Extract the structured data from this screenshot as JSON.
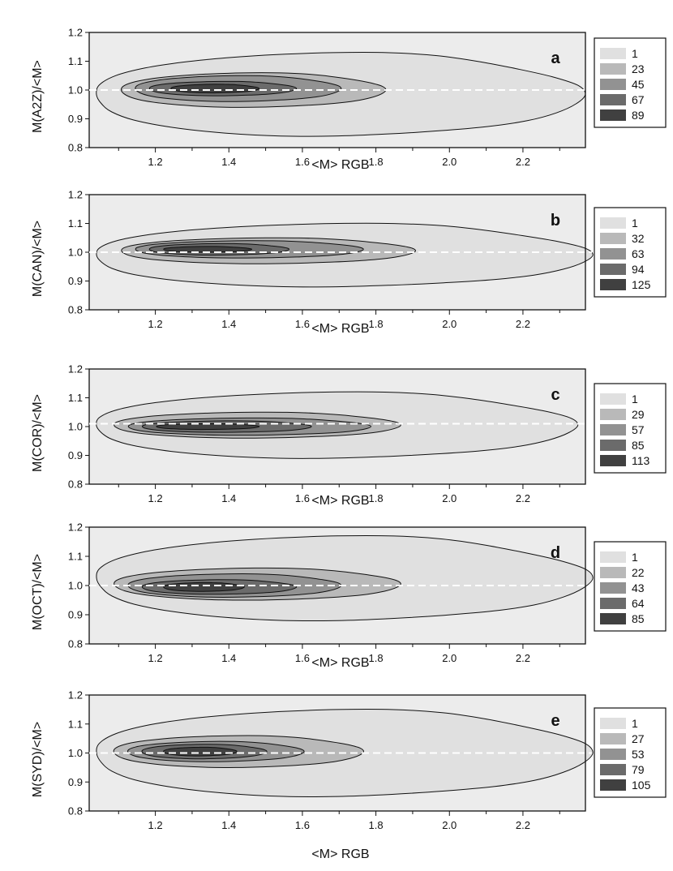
{
  "chart_data": [
    {
      "type": "heatmap",
      "panel": "a",
      "xlabel": "<M> RGB",
      "ylabel": "M(A2Z)/<M>",
      "xlim": [
        1.02,
        2.37
      ],
      "ylim": [
        0.8,
        1.2
      ],
      "xticks": [
        "1.2",
        "1.4",
        "1.6",
        "1.8",
        "2.0",
        "2.2"
      ],
      "yticks": [
        "0.8",
        "0.9",
        "1.0",
        "1.1",
        "1.2"
      ],
      "legend_levels": [
        "1",
        "23",
        "45",
        "67",
        "89"
      ],
      "reference_line": 1.0,
      "contours": [
        {
          "level": "1",
          "x_range": [
            1.02,
            2.35
          ],
          "y_range": [
            0.84,
            1.13
          ]
        },
        {
          "level": "23",
          "x_range": [
            1.1,
            1.82
          ],
          "y_range": [
            0.94,
            1.06
          ]
        },
        {
          "level": "45",
          "x_range": [
            1.14,
            1.7
          ],
          "y_range": [
            0.96,
            1.05
          ]
        },
        {
          "level": "67",
          "x_range": [
            1.18,
            1.58
          ],
          "y_range": [
            0.98,
            1.03
          ]
        },
        {
          "level": "89",
          "x_range": [
            1.24,
            1.48
          ],
          "y_range": [
            0.99,
            1.02
          ]
        }
      ]
    },
    {
      "type": "heatmap",
      "panel": "b",
      "xlabel": "<M> RGB",
      "ylabel": "M(CAN)/<M>",
      "xlim": [
        1.02,
        2.37
      ],
      "ylim": [
        0.8,
        1.2
      ],
      "xticks": [
        "1.2",
        "1.4",
        "1.6",
        "1.8",
        "2.0",
        "2.2"
      ],
      "yticks": [
        "0.8",
        "0.9",
        "1.0",
        "1.1",
        "1.2"
      ],
      "legend_levels": [
        "1",
        "32",
        "63",
        "94",
        "125"
      ],
      "reference_line": 1.0,
      "contours": [
        {
          "level": "1",
          "x_range": [
            1.02,
            2.37
          ],
          "y_range": [
            0.88,
            1.1
          ]
        },
        {
          "level": "32",
          "x_range": [
            1.1,
            1.9
          ],
          "y_range": [
            0.96,
            1.05
          ]
        },
        {
          "level": "63",
          "x_range": [
            1.14,
            1.76
          ],
          "y_range": [
            0.98,
            1.04
          ]
        },
        {
          "level": "94",
          "x_range": [
            1.18,
            1.56
          ],
          "y_range": [
            0.99,
            1.03
          ]
        },
        {
          "level": "125",
          "x_range": [
            1.22,
            1.46
          ],
          "y_range": [
            1.0,
            1.02
          ]
        }
      ]
    },
    {
      "type": "heatmap",
      "panel": "c",
      "xlabel": "<M> RGB",
      "ylabel": "M(COR)/<M>",
      "xlim": [
        1.02,
        2.37
      ],
      "ylim": [
        0.8,
        1.2
      ],
      "xticks": [
        "1.2",
        "1.4",
        "1.6",
        "1.8",
        "2.0",
        "2.2"
      ],
      "yticks": [
        "0.8",
        "0.9",
        "1.0",
        "1.1",
        "1.2"
      ],
      "legend_levels": [
        "1",
        "29",
        "57",
        "85",
        "113"
      ],
      "reference_line": 1.01,
      "contours": [
        {
          "level": "1",
          "x_range": [
            1.02,
            2.33
          ],
          "y_range": [
            0.89,
            1.12
          ]
        },
        {
          "level": "29",
          "x_range": [
            1.08,
            1.86
          ],
          "y_range": [
            0.96,
            1.05
          ]
        },
        {
          "level": "57",
          "x_range": [
            1.12,
            1.78
          ],
          "y_range": [
            0.97,
            1.03
          ]
        },
        {
          "level": "85",
          "x_range": [
            1.16,
            1.62
          ],
          "y_range": [
            0.98,
            1.02
          ]
        },
        {
          "level": "113",
          "x_range": [
            1.2,
            1.48
          ],
          "y_range": [
            0.99,
            1.01
          ]
        }
      ]
    },
    {
      "type": "heatmap",
      "panel": "d",
      "xlabel": "<M> RGB",
      "ylabel": "M(OCT)/<M>",
      "xlim": [
        1.02,
        2.37
      ],
      "ylim": [
        0.8,
        1.2
      ],
      "xticks": [
        "1.2",
        "1.4",
        "1.6",
        "1.8",
        "2.0",
        "2.2"
      ],
      "yticks": [
        "0.8",
        "0.9",
        "1.0",
        "1.1",
        "1.2"
      ],
      "legend_levels": [
        "1",
        "22",
        "43",
        "64",
        "85"
      ],
      "reference_line": 1.0,
      "contours": [
        {
          "level": "1",
          "x_range": [
            1.02,
            2.37
          ],
          "y_range": [
            0.88,
            1.17
          ]
        },
        {
          "level": "22",
          "x_range": [
            1.08,
            1.86
          ],
          "y_range": [
            0.95,
            1.06
          ]
        },
        {
          "level": "43",
          "x_range": [
            1.12,
            1.7
          ],
          "y_range": [
            0.96,
            1.04
          ]
        },
        {
          "level": "64",
          "x_range": [
            1.16,
            1.58
          ],
          "y_range": [
            0.97,
            1.02
          ]
        },
        {
          "level": "85",
          "x_range": [
            1.22,
            1.44
          ],
          "y_range": [
            0.98,
            1.01
          ]
        }
      ]
    },
    {
      "type": "heatmap",
      "panel": "e",
      "xlabel": "<M> RGB",
      "ylabel": "M(SYD)/<M>",
      "xlim": [
        1.02,
        2.37
      ],
      "ylim": [
        0.8,
        1.2
      ],
      "xticks": [
        "1.2",
        "1.4",
        "1.6",
        "1.8",
        "2.0",
        "2.2"
      ],
      "yticks": [
        "0.8",
        "0.9",
        "1.0",
        "1.1",
        "1.2"
      ],
      "legend_levels": [
        "1",
        "27",
        "53",
        "79",
        "105"
      ],
      "reference_line": 1.0,
      "contours": [
        {
          "level": "1",
          "x_range": [
            1.02,
            2.37
          ],
          "y_range": [
            0.85,
            1.15
          ]
        },
        {
          "level": "27",
          "x_range": [
            1.08,
            1.76
          ],
          "y_range": [
            0.95,
            1.06
          ]
        },
        {
          "level": "53",
          "x_range": [
            1.12,
            1.6
          ],
          "y_range": [
            0.97,
            1.04
          ]
        },
        {
          "level": "79",
          "x_range": [
            1.16,
            1.5
          ],
          "y_range": [
            0.98,
            1.03
          ]
        },
        {
          "level": "105",
          "x_range": [
            1.22,
            1.42
          ],
          "y_range": [
            0.99,
            1.02
          ]
        }
      ]
    }
  ],
  "colors": {
    "plot_background": "#ececec",
    "levels": [
      "#e0e0e0",
      "#b9b9b9",
      "#929292",
      "#6b6b6b",
      "#404040"
    ],
    "reference_line": "#ffffff",
    "contour_line": "#111111"
  }
}
